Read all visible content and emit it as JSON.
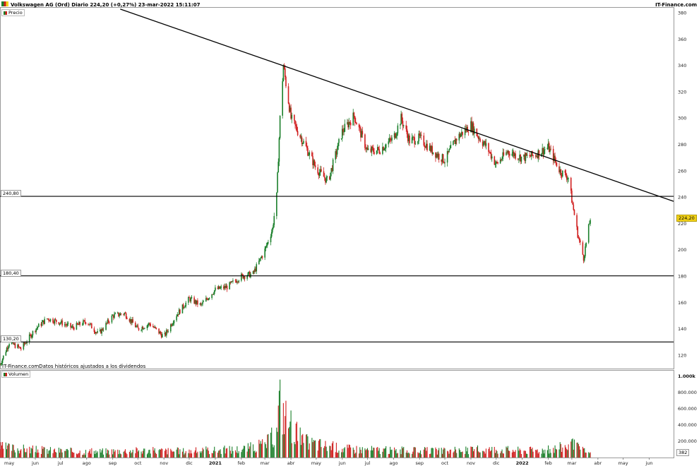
{
  "header": {
    "title": "Volkswagen AG (Ord) Diario 224,20 (+0,27%) 23-mar-2022 15:11:07",
    "brand": "IT-Finance.com"
  },
  "price_panel": {
    "legend": "Precio",
    "footer_note": "IT-Finance.comDatos históricos ajustados a los dividendos",
    "current_price_label": "224,20",
    "levels": [
      {
        "label": "240,80",
        "value": 240.8
      },
      {
        "label": "180,40",
        "value": 180.4
      },
      {
        "label": "130,20",
        "value": 130.2
      }
    ]
  },
  "volume_panel": {
    "legend": "Volumen",
    "badge": "382"
  },
  "colors": {
    "up": "#1a7f2a",
    "down": "#d01f1f",
    "level_line": "#000000",
    "trend_line": "#000000",
    "current_badge": "#f2d21a",
    "grid": "#d8d8d8"
  },
  "chart_data": [
    {
      "type": "candlestick",
      "title": "Volkswagen AG (Ord) Diario 224,20 (+0,27%) 23-mar-2022 15:11:07",
      "yaxis_ticks": [
        120,
        140,
        160,
        180,
        200,
        220,
        240,
        260,
        280,
        300,
        320,
        340,
        360,
        380
      ],
      "ylim": [
        110,
        384
      ],
      "xaxis_ticks": [
        "may",
        "jun",
        "jul",
        "ago",
        "sep",
        "oct",
        "nov",
        "dic",
        "2021",
        "feb",
        "mar",
        "abr",
        "may",
        "jun",
        "jul",
        "ago",
        "sep",
        "oct",
        "nov",
        "dic",
        "2022",
        "feb",
        "mar",
        "abr",
        "may",
        "jun"
      ],
      "bold_ticks": [
        "2021",
        "2022"
      ],
      "x_range": [
        "2020-04-20",
        "2022-06-30"
      ],
      "last_price": 224.2,
      "series": [
        {
          "name": "Precio",
          "x": [
            "2020-04-20",
            "2020-05-01",
            "2020-05-15",
            "2020-06-01",
            "2020-06-15",
            "2020-07-01",
            "2020-07-15",
            "2020-08-01",
            "2020-08-15",
            "2020-09-01",
            "2020-09-15",
            "2020-10-01",
            "2020-10-15",
            "2020-11-01",
            "2020-11-15",
            "2020-12-01",
            "2020-12-15",
            "2021-01-01",
            "2021-01-15",
            "2021-02-01",
            "2021-02-15",
            "2021-03-01",
            "2021-03-10",
            "2021-03-15",
            "2021-03-19",
            "2021-03-23",
            "2021-04-01",
            "2021-04-15",
            "2021-05-01",
            "2021-05-15",
            "2021-06-01",
            "2021-06-15",
            "2021-07-01",
            "2021-07-15",
            "2021-08-01",
            "2021-08-10",
            "2021-08-20",
            "2021-09-01",
            "2021-09-15",
            "2021-10-01",
            "2021-10-15",
            "2021-11-01",
            "2021-11-10",
            "2021-11-20",
            "2021-12-01",
            "2021-12-15",
            "2022-01-01",
            "2022-01-15",
            "2022-02-01",
            "2022-02-15",
            "2022-02-25",
            "2022-03-01",
            "2022-03-08",
            "2022-03-15",
            "2022-03-23"
          ],
          "y": [
            113,
            130,
            125,
            140,
            148,
            145,
            141,
            146,
            136,
            150,
            152,
            140,
            144,
            134,
            150,
            163,
            158,
            170,
            172,
            180,
            182,
            200,
            216,
            241,
            300,
            340,
            300,
            283,
            262,
            252,
            290,
            302,
            275,
            276,
            285,
            300,
            283,
            285,
            276,
            268,
            285,
            295,
            286,
            278,
            265,
            275,
            270,
            272,
            278,
            260,
            255,
            238,
            212,
            194,
            224.2
          ]
        }
      ],
      "horizontal_levels": [
        240.8,
        180.4,
        130.2
      ],
      "trend_line": {
        "from": [
          "2020-09-10",
          383
        ],
        "to": [
          "2022-06-30",
          237
        ]
      }
    },
    {
      "type": "bar",
      "title": "Volumen",
      "yaxis_ticks": [
        "200.000",
        "400.000",
        "600.000",
        "800.000",
        "1.000k"
      ],
      "ylim": [
        0,
        1000000
      ],
      "series": [
        {
          "name": "Volumen",
          "x": [
            "2020-04-20",
            "2020-06-01",
            "2020-08-01",
            "2020-10-01",
            "2020-12-01",
            "2021-02-01",
            "2021-03-01",
            "2021-03-15",
            "2021-03-19",
            "2021-03-23",
            "2021-04-15",
            "2021-06-01",
            "2021-08-01",
            "2021-10-01",
            "2021-12-01",
            "2022-01-01",
            "2022-02-01",
            "2022-03-01",
            "2022-03-08",
            "2022-03-23"
          ],
          "values": [
            160000,
            120000,
            90000,
            110000,
            100000,
            130000,
            200000,
            380000,
            950000,
            700000,
            250000,
            140000,
            110000,
            100000,
            130000,
            110000,
            120000,
            200000,
            150000,
            60000
          ]
        }
      ]
    }
  ]
}
